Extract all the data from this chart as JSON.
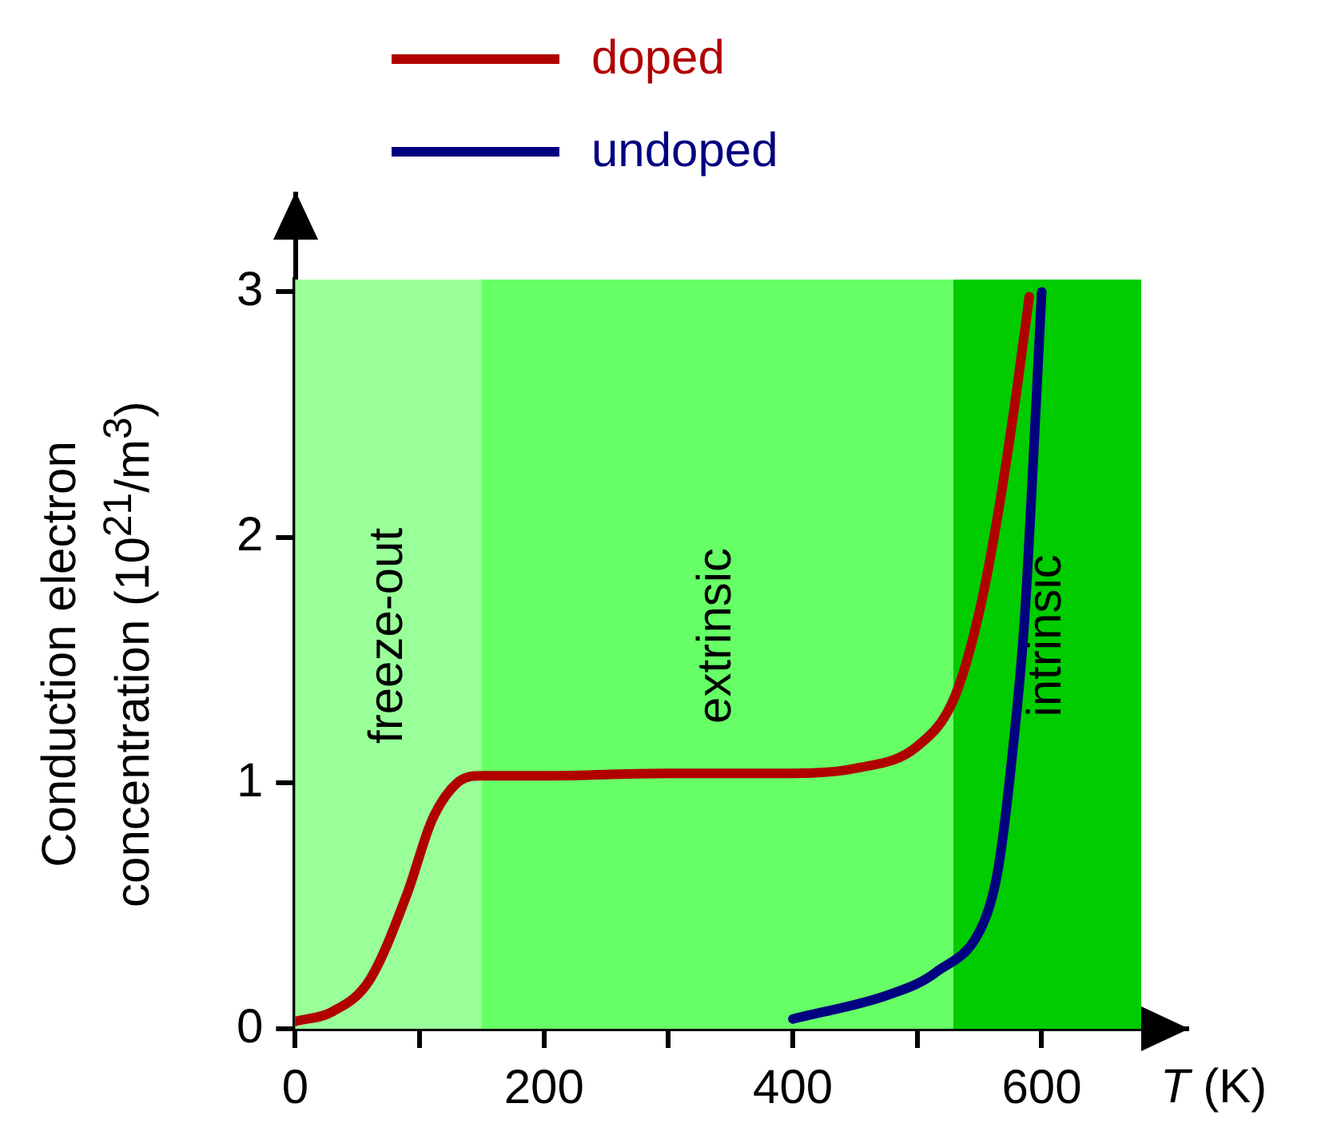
{
  "chart_data": {
    "type": "line",
    "xlabel": "T (K)",
    "ylabel": "Conduction electron concentration (10$^{21}$/m$^{3}$)",
    "xlim": [
      0,
      680
    ],
    "xticks": [
      0,
      {
        "value": 100,
        "label": null
      },
      200,
      {
        "value": 300,
        "label": null
      },
      400,
      {
        "value": 500,
        "label": null
      },
      600
    ],
    "ylim": [
      0,
      3.05
    ],
    "yticks": [
      0,
      1,
      2,
      3
    ],
    "grid": false,
    "legend": "top",
    "marker": "none",
    "line_style": "solid",
    "bands": [
      {
        "axis": "x",
        "from": 0,
        "to": 150,
        "label": "freeze-out",
        "color": "#99ff99"
      },
      {
        "axis": "x",
        "from": 150,
        "to": 529,
        "label": "extrinsic",
        "color": "#66ff66"
      },
      {
        "axis": "x",
        "from": 529,
        "to": 680,
        "label": "intrinsic",
        "color": "#00cc00"
      }
    ],
    "series": [
      {
        "name": "doped",
        "color": "#b00000",
        "x": [
          0,
          30,
          60,
          90,
          110,
          130,
          150,
          200,
          300,
          400,
          450,
          500,
          530,
          550,
          565,
          580,
          590
        ],
        "values": [
          0.03,
          0.07,
          0.2,
          0.55,
          0.85,
          1.0,
          1.03,
          1.03,
          1.04,
          1.04,
          1.06,
          1.15,
          1.35,
          1.7,
          2.1,
          2.6,
          2.98
        ]
      },
      {
        "name": "undoped",
        "color": "#000080",
        "x": [
          400,
          478,
          515,
          554,
          565,
          575,
          586,
          592,
          600
        ],
        "values": [
          0.04,
          0.14,
          0.23,
          0.44,
          0.65,
          1.05,
          1.65,
          2.19,
          3.0
        ]
      }
    ]
  }
}
